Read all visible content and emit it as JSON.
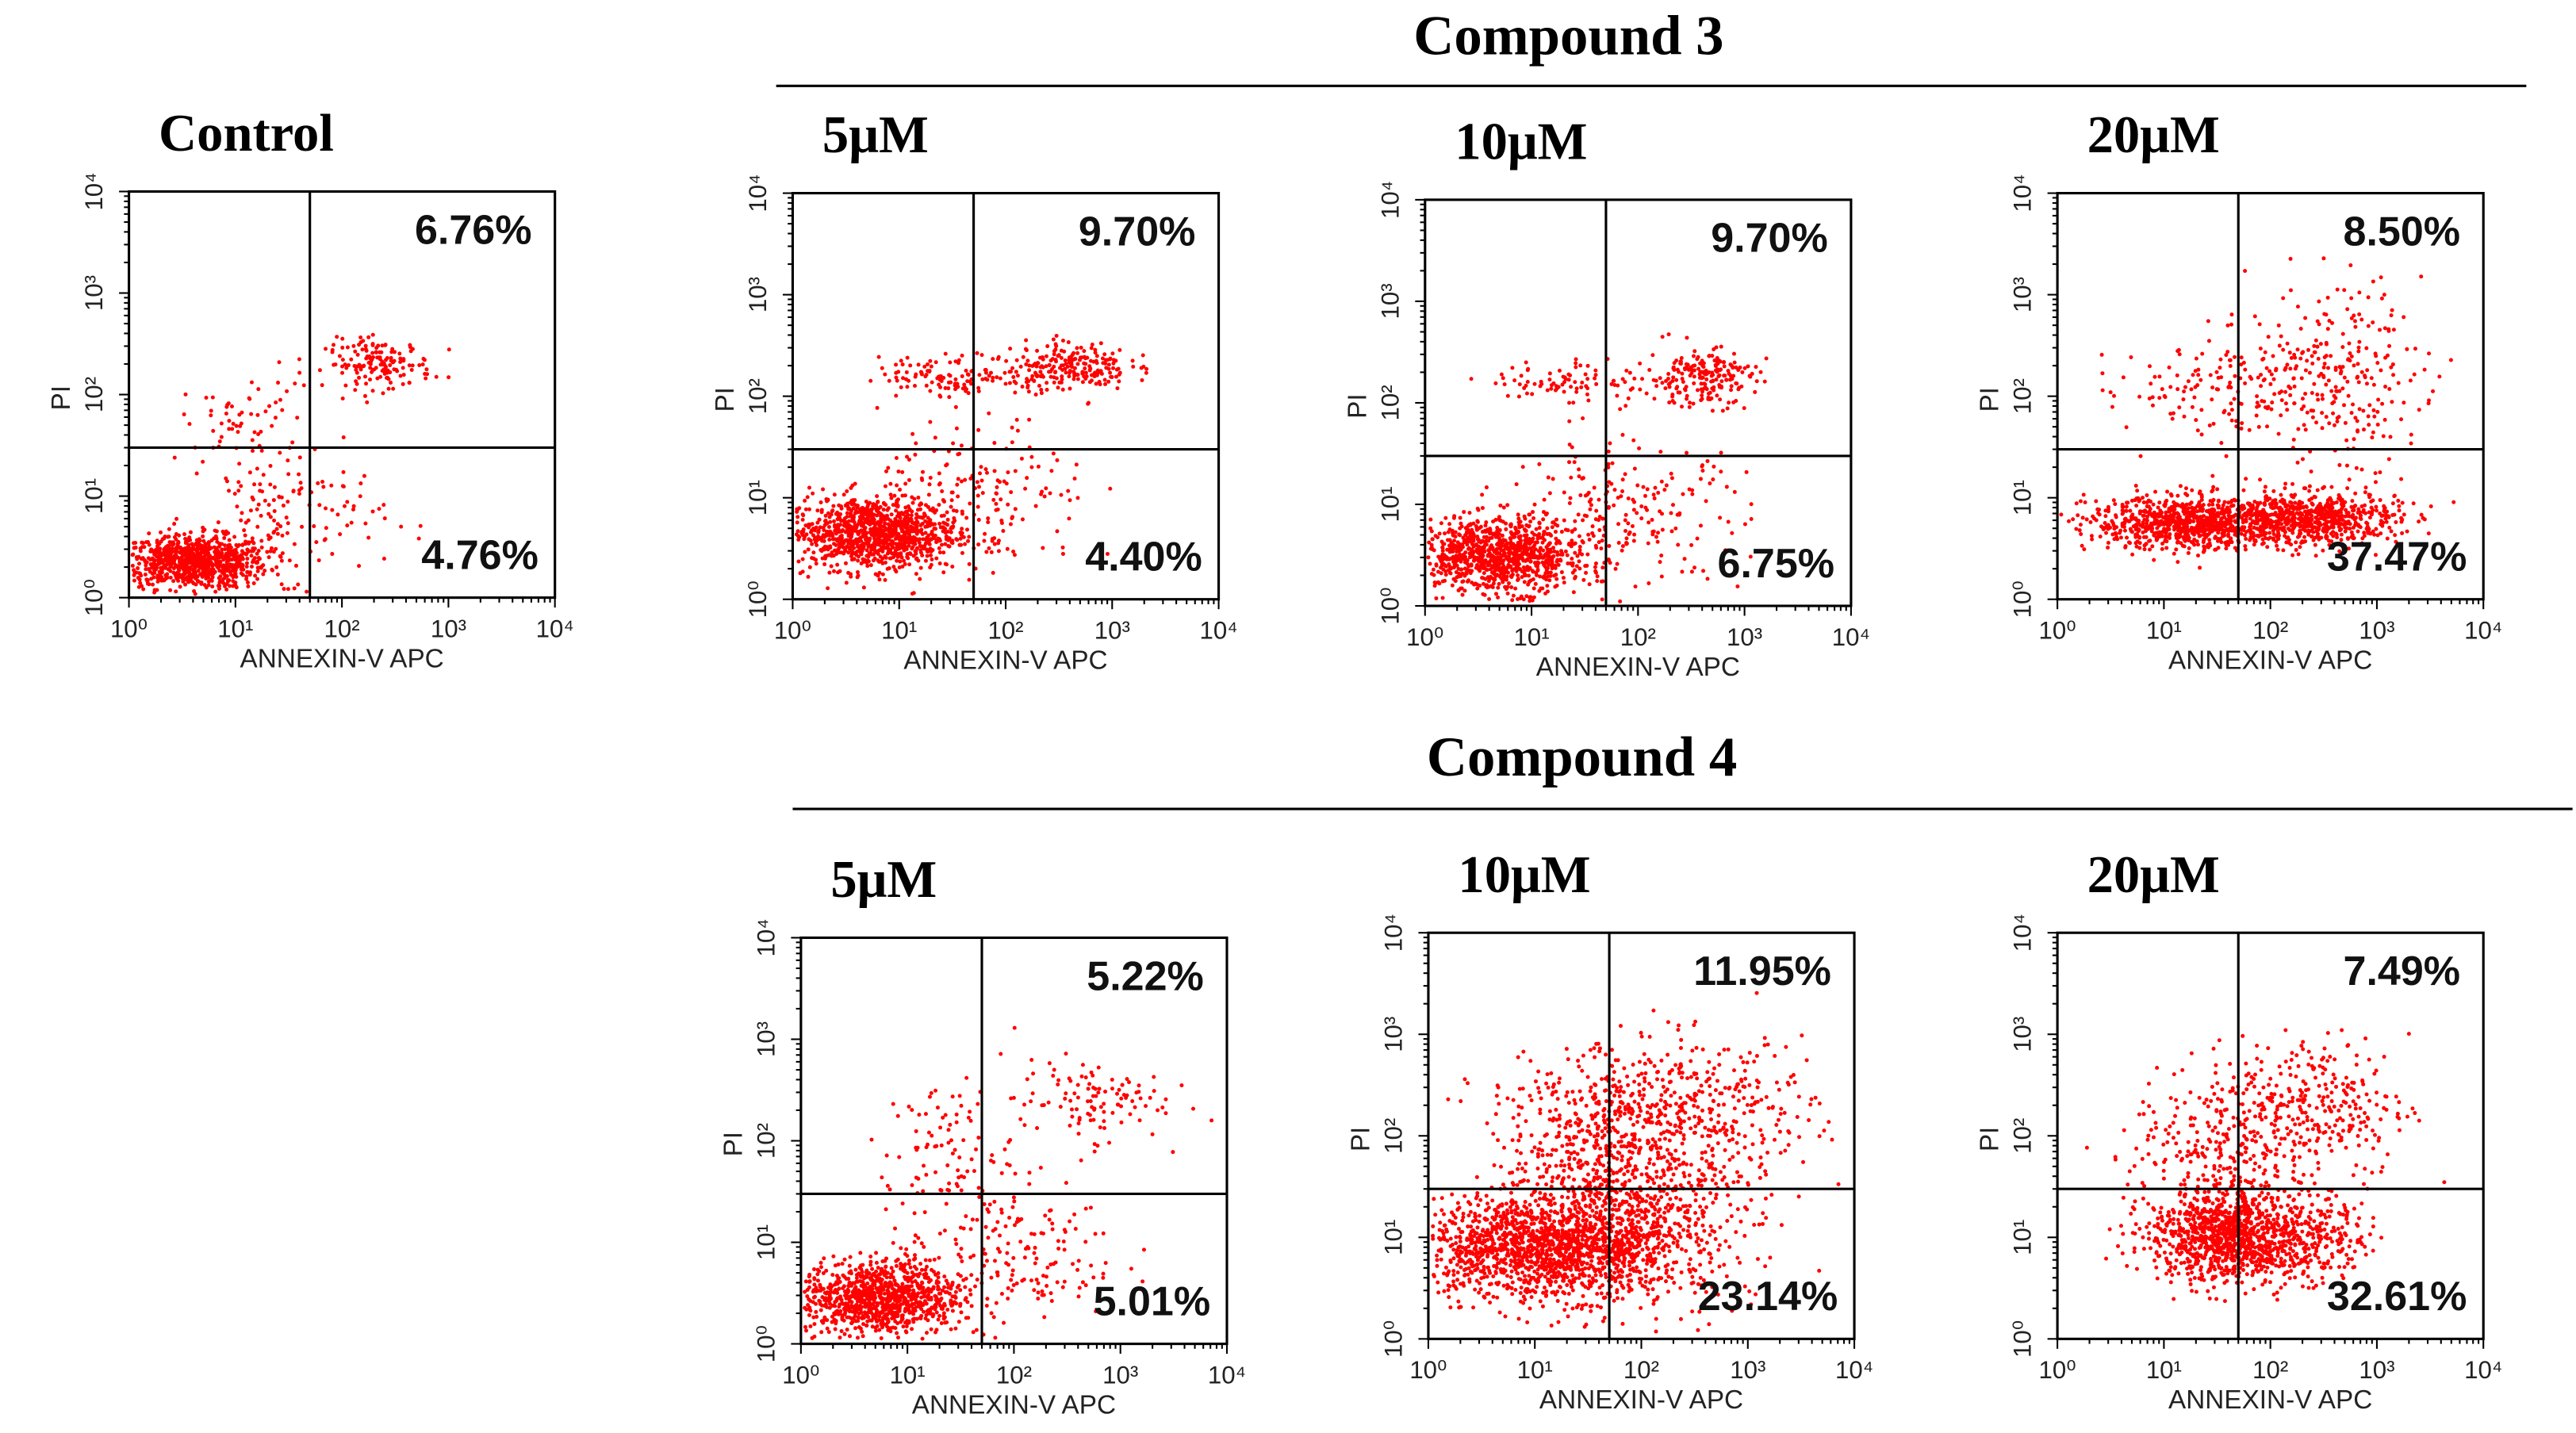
{
  "groups": [
    "Compound 3",
    "Compound 4"
  ],
  "chart_data": [
    {
      "type": "scatter",
      "title": "Control",
      "xlabel": "ANNEXIN-V APC",
      "ylabel": "PI",
      "xscale": "log",
      "yscale": "log",
      "color": "#ff0000",
      "xlim": [
        1,
        10000
      ],
      "ylim": [
        1,
        10000
      ],
      "xticks": [
        {
          "value": 1,
          "label": "10⁰"
        },
        {
          "value": 10,
          "label": "10¹"
        },
        {
          "value": 100,
          "label": "10²"
        },
        {
          "value": 1000,
          "label": "10³"
        },
        {
          "value": 10000,
          "label": "10⁴"
        }
      ],
      "yticks": [
        {
          "value": 1,
          "label": "10⁰"
        },
        {
          "value": 10,
          "label": "10¹"
        },
        {
          "value": 100,
          "label": "10²"
        },
        {
          "value": 1000,
          "label": "10³"
        },
        {
          "value": 10000,
          "label": "10⁴"
        }
      ],
      "x_gate": 50,
      "y_gate": 30,
      "annotations": [
        "6.76%",
        "4.76%"
      ]
    },
    {
      "type": "scatter",
      "title": "5μM",
      "xlabel": "ANNEXIN-V APC",
      "ylabel": "PI",
      "xscale": "log",
      "yscale": "log",
      "color": "#ff0000",
      "xlim": [
        1,
        10000
      ],
      "ylim": [
        1,
        10000
      ],
      "xticks": [
        {
          "value": 1,
          "label": "10⁰"
        },
        {
          "value": 10,
          "label": "10¹"
        },
        {
          "value": 100,
          "label": "10²"
        },
        {
          "value": 1000,
          "label": "10³"
        },
        {
          "value": 10000,
          "label": "10⁴"
        }
      ],
      "yticks": [
        {
          "value": 1,
          "label": "10⁰"
        },
        {
          "value": 10,
          "label": "10¹"
        },
        {
          "value": 100,
          "label": "10²"
        },
        {
          "value": 1000,
          "label": "10³"
        },
        {
          "value": 10000,
          "label": "10⁴"
        }
      ],
      "x_gate": 50,
      "y_gate": 30,
      "annotations": [
        "9.70%",
        "4.40%"
      ]
    },
    {
      "type": "scatter",
      "title": "10μM",
      "xlabel": "ANNEXIN-V APC",
      "ylabel": "PI",
      "xscale": "log",
      "yscale": "log",
      "color": "#ff0000",
      "xlim": [
        1,
        10000
      ],
      "ylim": [
        1,
        10000
      ],
      "xticks": [
        {
          "value": 1,
          "label": "10⁰"
        },
        {
          "value": 10,
          "label": "10¹"
        },
        {
          "value": 100,
          "label": "10²"
        },
        {
          "value": 1000,
          "label": "10³"
        },
        {
          "value": 10000,
          "label": "10⁴"
        }
      ],
      "yticks": [
        {
          "value": 1,
          "label": "10⁰"
        },
        {
          "value": 10,
          "label": "10¹"
        },
        {
          "value": 100,
          "label": "10²"
        },
        {
          "value": 1000,
          "label": "10³"
        },
        {
          "value": 10000,
          "label": "10⁴"
        }
      ],
      "x_gate": 50,
      "y_gate": 30,
      "annotations": [
        "9.70%",
        "6.75%"
      ]
    },
    {
      "type": "scatter",
      "title": "20μM",
      "xlabel": "ANNEXIN-V APC",
      "ylabel": "PI",
      "xscale": "log",
      "yscale": "log",
      "color": "#ff0000",
      "xlim": [
        1,
        10000
      ],
      "ylim": [
        1,
        10000
      ],
      "xticks": [
        {
          "value": 1,
          "label": "10⁰"
        },
        {
          "value": 10,
          "label": "10¹"
        },
        {
          "value": 100,
          "label": "10²"
        },
        {
          "value": 1000,
          "label": "10³"
        },
        {
          "value": 10000,
          "label": "10⁴"
        }
      ],
      "yticks": [
        {
          "value": 1,
          "label": "10⁰"
        },
        {
          "value": 10,
          "label": "10¹"
        },
        {
          "value": 100,
          "label": "10²"
        },
        {
          "value": 1000,
          "label": "10³"
        },
        {
          "value": 10000,
          "label": "10⁴"
        }
      ],
      "x_gate": 50,
      "y_gate": 30,
      "annotations": [
        "8.50%",
        "37.47%"
      ]
    },
    {
      "type": "scatter",
      "title": "5μM",
      "xlabel": "ANNEXIN-V APC",
      "ylabel": "PI",
      "xscale": "log",
      "yscale": "log",
      "color": "#ff0000",
      "xlim": [
        1,
        10000
      ],
      "ylim": [
        1,
        10000
      ],
      "xticks": [
        {
          "value": 1,
          "label": "10⁰"
        },
        {
          "value": 10,
          "label": "10¹"
        },
        {
          "value": 100,
          "label": "10²"
        },
        {
          "value": 1000,
          "label": "10³"
        },
        {
          "value": 10000,
          "label": "10⁴"
        }
      ],
      "yticks": [
        {
          "value": 1,
          "label": "10⁰"
        },
        {
          "value": 10,
          "label": "10¹"
        },
        {
          "value": 100,
          "label": "10²"
        },
        {
          "value": 1000,
          "label": "10³"
        },
        {
          "value": 10000,
          "label": "10⁴"
        }
      ],
      "x_gate": 50,
      "y_gate": 30,
      "annotations": [
        "5.22%",
        "5.01%"
      ]
    },
    {
      "type": "scatter",
      "title": "10μM",
      "xlabel": "ANNEXIN-V APC",
      "ylabel": "PI",
      "xscale": "log",
      "yscale": "log",
      "color": "#ff0000",
      "xlim": [
        1,
        10000
      ],
      "ylim": [
        1,
        10000
      ],
      "xticks": [
        {
          "value": 1,
          "label": "10⁰"
        },
        {
          "value": 10,
          "label": "10¹"
        },
        {
          "value": 100,
          "label": "10²"
        },
        {
          "value": 1000,
          "label": "10³"
        },
        {
          "value": 10000,
          "label": "10⁴"
        }
      ],
      "yticks": [
        {
          "value": 1,
          "label": "10⁰"
        },
        {
          "value": 10,
          "label": "10¹"
        },
        {
          "value": 100,
          "label": "10²"
        },
        {
          "value": 1000,
          "label": "10³"
        },
        {
          "value": 10000,
          "label": "10⁴"
        }
      ],
      "x_gate": 50,
      "y_gate": 30,
      "annotations": [
        "11.95%",
        "23.14%"
      ]
    },
    {
      "type": "scatter",
      "title": "20μM",
      "xlabel": "ANNEXIN-V APC",
      "ylabel": "PI",
      "xscale": "log",
      "yscale": "log",
      "color": "#ff0000",
      "xlim": [
        1,
        10000
      ],
      "ylim": [
        1,
        10000
      ],
      "xticks": [
        {
          "value": 1,
          "label": "10⁰"
        },
        {
          "value": 10,
          "label": "10¹"
        },
        {
          "value": 100,
          "label": "10²"
        },
        {
          "value": 1000,
          "label": "10³"
        },
        {
          "value": 10000,
          "label": "10⁴"
        }
      ],
      "yticks": [
        {
          "value": 1,
          "label": "10⁰"
        },
        {
          "value": 10,
          "label": "10¹"
        },
        {
          "value": 100,
          "label": "10²"
        },
        {
          "value": 1000,
          "label": "10³"
        },
        {
          "value": 10000,
          "label": "10⁴"
        }
      ],
      "x_gate": 50,
      "y_gate": 30,
      "annotations": [
        "7.49%",
        "32.61%"
      ]
    }
  ]
}
